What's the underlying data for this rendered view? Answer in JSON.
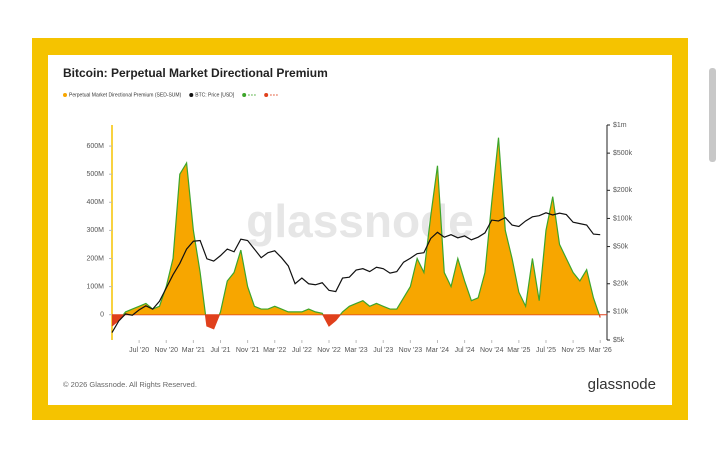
{
  "chart_data": {
    "type": "area_line",
    "title": "Bitcoin: Perpetual Market Directional Premium",
    "watermark": "glassnode",
    "footer": "© 2026 Glassnode. All Rights Reserved.",
    "logo": "glassnode",
    "x": [
      "2020-03",
      "2020-04",
      "2020-05",
      "2020-06",
      "2020-07",
      "2020-08",
      "2020-09",
      "2020-10",
      "2020-11",
      "2020-12",
      "2021-01",
      "2021-02",
      "2021-03",
      "2021-04",
      "2021-05",
      "2021-06",
      "2021-07",
      "2021-08",
      "2021-09",
      "2021-10",
      "2021-11",
      "2021-12",
      "2022-01",
      "2022-02",
      "2022-03",
      "2022-04",
      "2022-05",
      "2022-06",
      "2022-07",
      "2022-08",
      "2022-09",
      "2022-10",
      "2022-11",
      "2022-12",
      "2023-01",
      "2023-02",
      "2023-03",
      "2023-04",
      "2023-05",
      "2023-06",
      "2023-07",
      "2023-08",
      "2023-09",
      "2023-10",
      "2023-11",
      "2023-12",
      "2024-01",
      "2024-02",
      "2024-03",
      "2024-04",
      "2024-05",
      "2024-06",
      "2024-07",
      "2024-08",
      "2024-09",
      "2024-10",
      "2024-11",
      "2024-12",
      "2025-01",
      "2025-02",
      "2025-03",
      "2025-04",
      "2025-05",
      "2025-06",
      "2025-07",
      "2025-08",
      "2025-09",
      "2025-10",
      "2025-11",
      "2025-12",
      "2026-01",
      "2026-02",
      "2026-03"
    ],
    "series": [
      {
        "name": "Perpetual Market Directional Premium (SED-SUM)",
        "color": "#f7a600",
        "pos_line_color": "#3da52a",
        "neg_color": "#e0401c",
        "values": [
          -40000000,
          -20000000,
          10000000,
          20000000,
          30000000,
          40000000,
          20000000,
          30000000,
          100000000,
          200000000,
          500000000,
          540000000,
          300000000,
          150000000,
          -40000000,
          -50000000,
          10000000,
          120000000,
          150000000,
          230000000,
          100000000,
          30000000,
          20000000,
          20000000,
          30000000,
          20000000,
          10000000,
          10000000,
          10000000,
          20000000,
          10000000,
          5000000,
          -40000000,
          -20000000,
          10000000,
          30000000,
          40000000,
          50000000,
          30000000,
          40000000,
          30000000,
          20000000,
          20000000,
          60000000,
          100000000,
          200000000,
          150000000,
          350000000,
          530000000,
          150000000,
          100000000,
          200000000,
          120000000,
          50000000,
          60000000,
          150000000,
          400000000,
          630000000,
          300000000,
          200000000,
          80000000,
          30000000,
          200000000,
          50000000,
          300000000,
          420000000,
          250000000,
          200000000,
          150000000,
          120000000,
          160000000,
          60000000,
          -10000000
        ]
      },
      {
        "name": "BTC: Price [USD]",
        "color": "#111111",
        "axis": "y2",
        "values": [
          6000,
          8000,
          9500,
          9200,
          10500,
          11600,
          10700,
          13000,
          18000,
          25000,
          33000,
          47000,
          57000,
          58000,
          37000,
          35000,
          40000,
          47000,
          44000,
          60000,
          58000,
          47000,
          38000,
          43000,
          45000,
          38000,
          31000,
          20000,
          23000,
          20000,
          19500,
          20500,
          17000,
          16500,
          23000,
          23500,
          28000,
          29000,
          27000,
          30000,
          29000,
          26000,
          27000,
          34000,
          37500,
          42000,
          43000,
          61000,
          71000,
          63000,
          67000,
          62000,
          65000,
          59000,
          63000,
          70000,
          96000,
          94000,
          102000,
          85000,
          82000,
          94000,
          104000,
          107000,
          115000,
          109000,
          114000,
          110000,
          91000,
          88000,
          85000,
          68000,
          67000
        ]
      }
    ],
    "extra_legend_colors": [
      "#3da52a",
      "#e0401c"
    ],
    "xlim": [
      "2020-03",
      "2026-04"
    ],
    "xticks": [
      {
        "value": "2020-07",
        "label": "Jul '20"
      },
      {
        "value": "2020-11",
        "label": "Nov '20"
      },
      {
        "value": "2021-03",
        "label": "Mar '21"
      },
      {
        "value": "2021-07",
        "label": "Jul '21"
      },
      {
        "value": "2021-11",
        "label": "Nov '21"
      },
      {
        "value": "2022-03",
        "label": "Mar '22"
      },
      {
        "value": "2022-07",
        "label": "Jul '22"
      },
      {
        "value": "2022-11",
        "label": "Nov '22"
      },
      {
        "value": "2023-03",
        "label": "Mar '23"
      },
      {
        "value": "2023-07",
        "label": "Jul '23"
      },
      {
        "value": "2023-11",
        "label": "Nov '23"
      },
      {
        "value": "2024-03",
        "label": "Mar '24"
      },
      {
        "value": "2024-07",
        "label": "Jul '24"
      },
      {
        "value": "2024-11",
        "label": "Nov '24"
      },
      {
        "value": "2025-03",
        "label": "Mar '25"
      },
      {
        "value": "2025-07",
        "label": "Jul '25"
      },
      {
        "value": "2025-11",
        "label": "Nov '25"
      },
      {
        "value": "2026-03",
        "label": "Mar '26"
      }
    ],
    "ylim": [
      -90000000,
      675000000
    ],
    "yticks": [
      {
        "value": 600000000,
        "label": "600M"
      },
      {
        "value": 500000000,
        "label": "500M"
      },
      {
        "value": 400000000,
        "label": "400M"
      },
      {
        "value": 300000000,
        "label": "300M"
      },
      {
        "value": 200000000,
        "label": "200M"
      },
      {
        "value": 100000000,
        "label": "100M"
      },
      0
    ],
    "y2lim": [
      5000,
      1000000
    ],
    "y2log": true,
    "y2ticks": [
      {
        "value": 1000000,
        "label": "$1m"
      },
      {
        "value": 500000,
        "label": "$500k"
      },
      {
        "value": 200000,
        "label": "$200k"
      },
      {
        "value": 100000,
        "label": "$100k"
      },
      {
        "value": 50000,
        "label": "$50k"
      },
      {
        "value": 20000,
        "label": "$20k"
      },
      {
        "value": 10000,
        "label": "$10k"
      },
      {
        "value": 5000,
        "label": "$5k"
      }
    ],
    "grid": false
  }
}
